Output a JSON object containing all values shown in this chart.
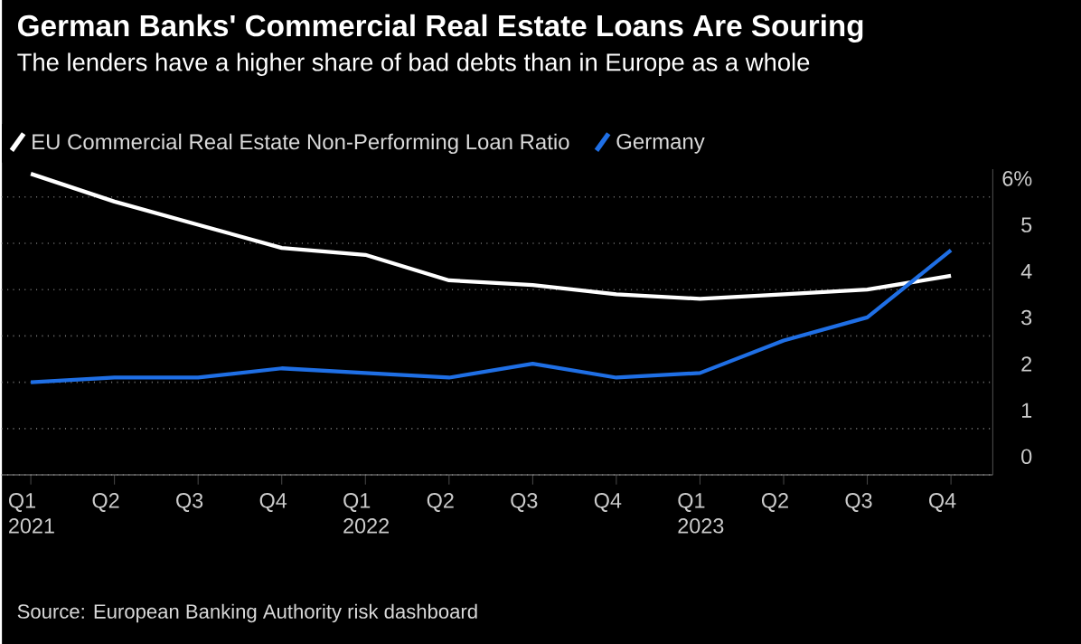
{
  "chart_data": {
    "type": "line",
    "title": "German Banks' Commercial Real Estate Loans Are Souring",
    "subtitle": "The lenders have a higher share of bad debts than in Europe as a whole",
    "categories": [
      "Q1 2021",
      "Q2",
      "Q3",
      "Q4",
      "Q1 2022",
      "Q2",
      "Q3",
      "Q4",
      "Q1 2023",
      "Q2",
      "Q3",
      "Q4"
    ],
    "series": [
      {
        "name": "EU Commercial Real Estate Non-Performing Loan Ratio",
        "color": "#ffffff",
        "values": [
          6.5,
          5.9,
          5.4,
          4.9,
          4.75,
          4.2,
          4.1,
          3.9,
          3.8,
          3.9,
          4.0,
          4.3
        ]
      },
      {
        "name": "Germany",
        "color": "#1f6fe5",
        "values": [
          2.0,
          2.1,
          2.1,
          2.3,
          2.2,
          2.1,
          2.4,
          2.1,
          2.2,
          2.9,
          3.4,
          4.85
        ]
      }
    ],
    "ylim": [
      0,
      6.6
    ],
    "yticks": [
      0,
      1,
      2,
      3,
      4,
      5,
      {
        "value": 6,
        "label": "6%"
      }
    ],
    "grid": "y",
    "legend": "top left",
    "marker": "none",
    "line_style": "solid",
    "annotations": [
      "Source: European Banking Authority risk dashboard"
    ]
  }
}
